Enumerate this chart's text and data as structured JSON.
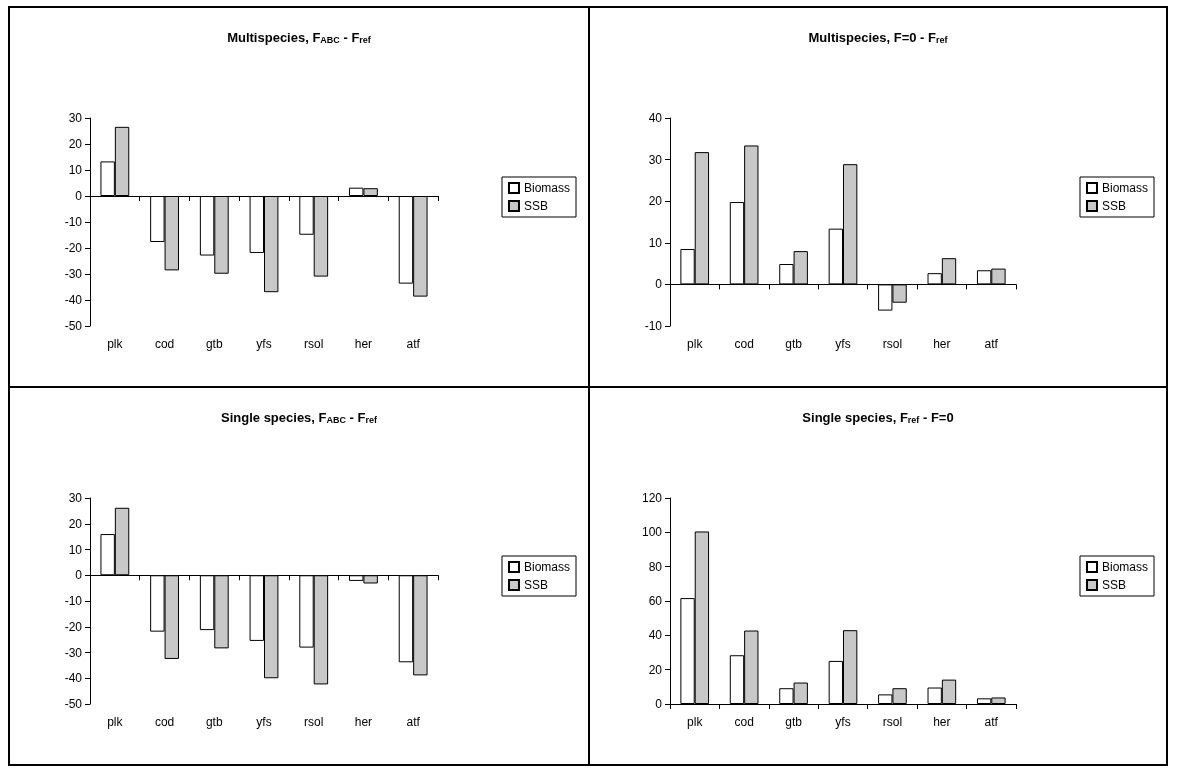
{
  "chart_data": [
    {
      "type": "bar",
      "title": "Multispecies, F$_{ABC}$ - F$_{ref}$",
      "categories": [
        "plk",
        "cod",
        "gtb",
        "yfs",
        "rsol",
        "her",
        "atf"
      ],
      "series": [
        {
          "name": "Biomass",
          "color": "#ffffff",
          "values": [
            13.3,
            -17.7,
            -22.9,
            -21.9,
            -14.9,
            3.2,
            -33.7
          ]
        },
        {
          "name": "SSB",
          "color": "#c8c8c8",
          "values": [
            26.6,
            -28.6,
            -29.9,
            -37,
            -31,
            3,
            -38.7
          ]
        }
      ],
      "ylim": [
        -50,
        30
      ],
      "yticks": [
        -50,
        -40,
        -30,
        -20,
        -10,
        0,
        10,
        20,
        30
      ],
      "legend": "right"
    },
    {
      "type": "bar",
      "title": "Multispecies, F=0 - F$_{ref}$",
      "categories": [
        "plk",
        "cod",
        "gtb",
        "yfs",
        "rsol",
        "her",
        "atf"
      ],
      "series": [
        {
          "name": "Biomass",
          "color": "#ffffff",
          "values": [
            8.5,
            19.8,
            4.9,
            13.4,
            -6.3,
            2.7,
            3.4
          ]
        },
        {
          "name": "SSB",
          "color": "#c8c8c8",
          "values": [
            31.8,
            33.4,
            8,
            28.9,
            -4.4,
            6.3,
            3.8
          ]
        }
      ],
      "ylim": [
        -10,
        40
      ],
      "yticks": [
        -10,
        0,
        10,
        20,
        30,
        40
      ],
      "legend": "right"
    },
    {
      "type": "bar",
      "title": "Single species, F$_{ABC}$ - F$_{ref}$",
      "categories": [
        "plk",
        "cod",
        "gtb",
        "yfs",
        "rsol",
        "her",
        "atf"
      ],
      "series": [
        {
          "name": "Biomass",
          "color": "#ffffff",
          "values": [
            16,
            -21.9,
            -21.3,
            -25.5,
            -28.1,
            -2.2,
            -33.8
          ]
        },
        {
          "name": "SSB",
          "color": "#c8c8c8",
          "values": [
            26.2,
            -32.5,
            -28.4,
            -40,
            -42.4,
            -3.2,
            -38.9
          ]
        }
      ],
      "ylim": [
        -50,
        30
      ],
      "yticks": [
        -50,
        -40,
        -30,
        -20,
        -10,
        0,
        10,
        20,
        30
      ],
      "legend": "right"
    },
    {
      "type": "bar",
      "title": "Single species, F$_{ref}$ - F=0",
      "categories": [
        "plk",
        "cod",
        "gtb",
        "yfs",
        "rsol",
        "her",
        "atf"
      ],
      "series": [
        {
          "name": "Biomass",
          "color": "#ffffff",
          "values": [
            61.7,
            28.4,
            9.2,
            25.1,
            5.6,
            9.6,
            3.3
          ]
        },
        {
          "name": "SSB",
          "color": "#c8c8c8",
          "values": [
            100.5,
            42.8,
            12.5,
            43,
            9.2,
            14.2,
            3.8
          ]
        }
      ],
      "ylim": [
        0,
        120
      ],
      "yticks": [
        0,
        20,
        40,
        60,
        80,
        100,
        120
      ],
      "legend": "right"
    }
  ]
}
